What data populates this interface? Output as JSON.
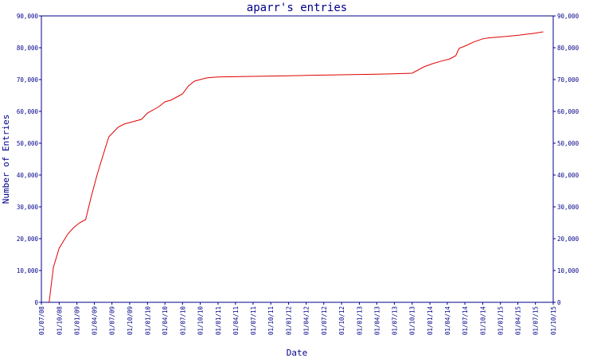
{
  "chart_data": {
    "type": "line",
    "title": "aparr's entries",
    "xlabel": "Date",
    "ylabel": "Number of Entries",
    "ylim": [
      0,
      90000
    ],
    "y_ticks": [
      0,
      10000,
      20000,
      30000,
      40000,
      50000,
      60000,
      70000,
      80000,
      90000
    ],
    "y_tick_labels": [
      "0",
      "10,000",
      "20,000",
      "30,000",
      "40,000",
      "50,000",
      "60,000",
      "70,000",
      "80,000",
      "90,000"
    ],
    "x_ticks": [
      "2008-07-01",
      "2008-10-01",
      "2009-01-01",
      "2009-04-01",
      "2009-07-01",
      "2009-10-01",
      "2010-01-01",
      "2010-04-01",
      "2010-07-01",
      "2010-10-01",
      "2011-01-01",
      "2011-04-01",
      "2011-07-01",
      "2011-10-01",
      "2012-01-01",
      "2012-04-01",
      "2012-07-01",
      "2012-10-01",
      "2013-01-01",
      "2013-04-01",
      "2013-07-01",
      "2013-10-01",
      "2014-01-01",
      "2014-04-01",
      "2014-07-01",
      "2014-10-01",
      "2015-01-01",
      "2015-04-01",
      "2015-07-01",
      "2015-10-01"
    ],
    "x_tick_labels": [
      "01/07/08",
      "01/10/08",
      "01/01/09",
      "01/04/09",
      "01/07/09",
      "01/10/09",
      "01/01/10",
      "01/04/10",
      "01/07/10",
      "01/10/10",
      "01/01/11",
      "01/04/11",
      "01/07/11",
      "01/10/11",
      "01/01/12",
      "01/04/12",
      "01/07/12",
      "01/10/12",
      "01/01/13",
      "01/04/13",
      "01/07/13",
      "01/10/13",
      "01/01/14",
      "01/04/14",
      "01/07/14",
      "01/10/14",
      "01/01/15",
      "01/04/15",
      "01/07/15",
      "01/10/15"
    ],
    "grid": false,
    "series": [
      {
        "color": "#e00000",
        "x": [
          "2008-08-10",
          "2008-09-01",
          "2008-10-01",
          "2008-11-15",
          "2008-12-15",
          "2009-01-15",
          "2009-02-15",
          "2009-03-15",
          "2009-04-15",
          "2009-05-15",
          "2009-06-15",
          "2009-07-01",
          "2009-08-01",
          "2009-09-01",
          "2009-10-01",
          "2009-11-01",
          "2009-12-01",
          "2010-01-01",
          "2010-02-01",
          "2010-03-01",
          "2010-04-01",
          "2010-05-01",
          "2010-06-01",
          "2010-07-01",
          "2010-08-01",
          "2010-09-01",
          "2010-10-01",
          "2010-11-01",
          "2010-12-01",
          "2011-01-01",
          "2011-04-01",
          "2011-07-01",
          "2011-10-01",
          "2012-01-01",
          "2012-04-01",
          "2012-07-01",
          "2012-10-01",
          "2013-01-01",
          "2013-04-01",
          "2013-07-01",
          "2013-10-01",
          "2013-12-01",
          "2014-01-15",
          "2014-03-01",
          "2014-04-15",
          "2014-05-15",
          "2014-06-01",
          "2014-07-01",
          "2014-08-15",
          "2014-10-01",
          "2014-11-01",
          "2015-01-01",
          "2015-04-01",
          "2015-07-01",
          "2015-08-10"
        ],
        "values": [
          0,
          11000,
          17000,
          21500,
          23500,
          25000,
          26000,
          33000,
          40000,
          46000,
          52000,
          53000,
          55000,
          56000,
          56500,
          57000,
          57500,
          59500,
          60500,
          61500,
          63000,
          63500,
          64500,
          65500,
          68000,
          69500,
          70000,
          70500,
          70700,
          70800,
          70900,
          71000,
          71100,
          71200,
          71300,
          71400,
          71500,
          71600,
          71700,
          71800,
          72000,
          74000,
          75000,
          75800,
          76500,
          77500,
          79800,
          80500,
          81800,
          82800,
          83100,
          83400,
          83900,
          84600,
          85000
        ]
      }
    ]
  }
}
